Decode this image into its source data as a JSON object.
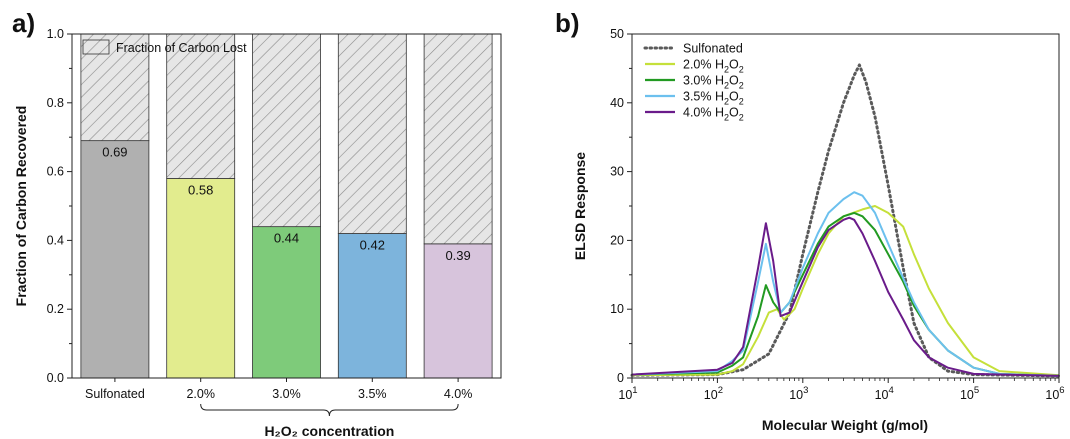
{
  "chart_data": [
    {
      "type": "bar",
      "panel_label": "a)",
      "stacked": true,
      "categories": [
        "Sulfonated",
        "2.0%",
        "3.0%",
        "3.5%",
        "4.0%"
      ],
      "series": [
        {
          "name": "",
          "values": [
            0.69,
            0.58,
            0.44,
            0.42,
            0.39
          ],
          "colors": [
            "#b0b0b0",
            "#e2ec8e",
            "#7ecb7a",
            "#7db4dc",
            "#d7c4dc"
          ]
        },
        {
          "name": "Fraction of Carbon Lost",
          "values": [
            0.31,
            0.42,
            0.56,
            0.58,
            0.61
          ],
          "pattern": "hatch"
        }
      ],
      "data_labels": [
        "0.69",
        "0.58",
        "0.44",
        "0.42",
        "0.39"
      ],
      "ylabel": "Fraction of Carbon Recovered",
      "xlabel": "H₂O₂ concentration",
      "xlabel_bracket_categories": [
        "2.0%",
        "3.0%",
        "3.5%",
        "4.0%"
      ],
      "ylim": [
        0,
        1.0
      ],
      "yticks": [
        "0.0",
        "0.2",
        "0.4",
        "0.6",
        "0.8",
        "1.0"
      ],
      "legend_position": "top"
    },
    {
      "type": "line",
      "panel_label": "b)",
      "xscale": "log",
      "xlim": [
        10,
        1000000
      ],
      "ylim": [
        0,
        50
      ],
      "xlabel": "Molecular Weight (g/mol)",
      "ylabel": "ELSD Response",
      "xticks": [
        {
          "base": "10",
          "exp": "1"
        },
        {
          "base": "10",
          "exp": "2"
        },
        {
          "base": "10",
          "exp": "3"
        },
        {
          "base": "10",
          "exp": "4"
        },
        {
          "base": "10",
          "exp": "5"
        },
        {
          "base": "10",
          "exp": "6"
        }
      ],
      "yticks": [
        "0",
        "10",
        "20",
        "30",
        "40",
        "50"
      ],
      "legend_position": "top-left",
      "series": [
        {
          "name": "Sulfonated",
          "color": "#5a5a5a",
          "style": "dotted",
          "x": [
            10,
            100,
            200,
            400,
            700,
            1000,
            1500,
            2000,
            3000,
            4000,
            4600,
            5500,
            7000,
            10000,
            15000,
            20000,
            30000,
            50000,
            100000,
            1000000
          ],
          "y": [
            0.4,
            0.5,
            1.2,
            3.5,
            9.5,
            18,
            27,
            33,
            40,
            44,
            45.5,
            43,
            38,
            28,
            16,
            8,
            3,
            1,
            0.5,
            0.3
          ]
        },
        {
          "name": "2.0% H₂O₂",
          "color": "#c5e03a",
          "style": "solid",
          "x": [
            10,
            100,
            150,
            200,
            300,
            400,
            500,
            600,
            800,
            1000,
            1500,
            2000,
            3000,
            5000,
            7000,
            10000,
            15000,
            20000,
            30000,
            50000,
            100000,
            200000,
            1000000
          ],
          "y": [
            0.4,
            0.5,
            1.0,
            2.0,
            6.0,
            9.5,
            10,
            8.5,
            10,
            13,
            18,
            21,
            23.5,
            24.5,
            25,
            24,
            22,
            18,
            13,
            8,
            3,
            1,
            0.4
          ]
        },
        {
          "name": "3.0% H₂O₂",
          "color": "#229a22",
          "style": "solid",
          "x": [
            10,
            100,
            150,
            200,
            300,
            370,
            450,
            550,
            700,
            1000,
            1500,
            2000,
            3000,
            4000,
            5000,
            7000,
            10000,
            15000,
            20000,
            30000,
            50000,
            100000,
            200000,
            1000000
          ],
          "y": [
            0.5,
            0.8,
            1.8,
            3.0,
            9.0,
            13.5,
            11,
            9.5,
            11,
            15,
            19.5,
            22,
            23.5,
            24,
            23.5,
            21.5,
            18,
            14,
            10.5,
            7,
            4,
            1.5,
            0.6,
            0.3
          ]
        },
        {
          "name": "3.5% H₂O₂",
          "color": "#6cc0ee",
          "style": "solid",
          "x": [
            10,
            100,
            150,
            200,
            300,
            370,
            450,
            550,
            700,
            1000,
            1500,
            2000,
            3000,
            4000,
            5000,
            7000,
            10000,
            15000,
            20000,
            30000,
            50000,
            100000,
            200000,
            1000000
          ],
          "y": [
            0.5,
            1.0,
            2.5,
            4.0,
            14,
            19.5,
            14,
            9.5,
            11,
            16,
            21,
            24,
            26,
            27,
            26.5,
            24,
            19.5,
            14.5,
            11,
            7,
            4,
            1.5,
            0.6,
            0.3
          ]
        },
        {
          "name": "4.0% H₂O₂",
          "color": "#6a1b8a",
          "style": "solid",
          "x": [
            10,
            100,
            150,
            200,
            300,
            370,
            450,
            550,
            700,
            1000,
            1500,
            2000,
            3000,
            3500,
            4000,
            5000,
            7000,
            10000,
            15000,
            20000,
            30000,
            50000,
            100000,
            1000000
          ],
          "y": [
            0.5,
            1.2,
            2.2,
            4.5,
            16,
            22.5,
            17,
            9,
            9.5,
            14,
            19,
            21.5,
            23,
            23.3,
            23,
            21,
            17,
            12.5,
            8.5,
            5.5,
            3,
            1.5,
            0.6,
            0.3
          ]
        }
      ]
    }
  ]
}
